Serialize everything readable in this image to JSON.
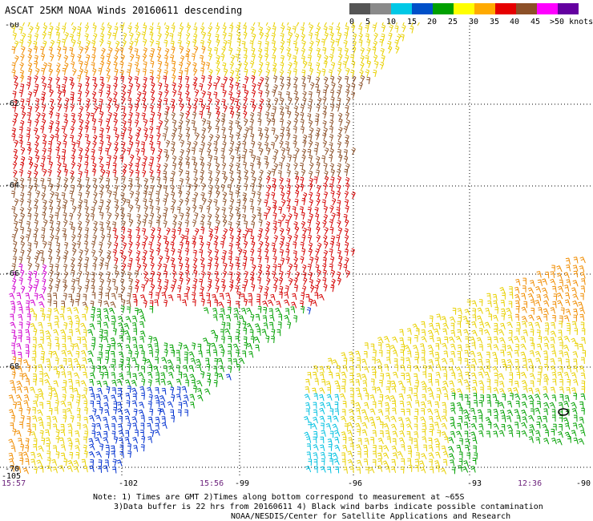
{
  "title": "ASCAT 25KM NOAA Winds 20160611 descending",
  "legend": {
    "labels": [
      "0",
      "5",
      "10",
      "15",
      "20",
      "25",
      "30",
      "35",
      "40",
      "45",
      ">50 knots"
    ],
    "colors": [
      "#555555",
      "#8a8a8a",
      "#00c8e6",
      "#0050c8",
      "#00a000",
      "#ffff00",
      "#ffaa00",
      "#e60000",
      "#8c5028",
      "#ff00ff",
      "#6400a0"
    ]
  },
  "map": {
    "lat_labels": [
      "-60",
      "-62",
      "-64",
      "-66",
      "-68",
      "-70"
    ],
    "lon_labels": [
      "-105",
      "-102",
      "-99",
      "-96",
      "-93",
      "-90"
    ],
    "time_labels": [
      "15:57",
      "15:56",
      "12:36"
    ],
    "wind_colors": {
      "yellow": "#e8d000",
      "orange": "#f08c00",
      "red": "#d40000",
      "brown": "#8c5028",
      "magenta": "#d000d0",
      "green": "#00a000",
      "blue": "#0030d0",
      "cyan": "#00c0e0",
      "black": "#000000"
    }
  },
  "notes": {
    "line1": "Note: 1) Times are GMT 2)Times along bottom correspond to measurement at ~65S",
    "line2": "3)Data buffer is 22 hrs from 20160611 4) Black wind barbs indicate possible contamination",
    "line3": "NOAA/NESDIS/Center for Satellite Applications and Research"
  }
}
